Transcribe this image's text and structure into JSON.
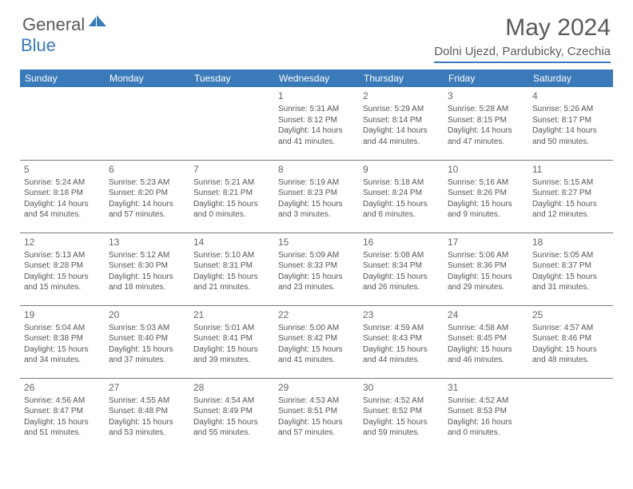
{
  "logo": {
    "text1": "General",
    "text2": "Blue"
  },
  "title": "May 2024",
  "location": "Dolni Ujezd, Pardubicky, Czechia",
  "colors": {
    "header_bar": "#3a7ab8",
    "text_gray": "#5a5a5a",
    "cell_text": "#555555",
    "border": "#7a7a7a",
    "bg": "#ffffff"
  },
  "days_of_week": [
    "Sunday",
    "Monday",
    "Tuesday",
    "Wednesday",
    "Thursday",
    "Friday",
    "Saturday"
  ],
  "weeks": [
    [
      {
        "n": "",
        "sr": "",
        "ss": "",
        "dl": ""
      },
      {
        "n": "",
        "sr": "",
        "ss": "",
        "dl": ""
      },
      {
        "n": "",
        "sr": "",
        "ss": "",
        "dl": ""
      },
      {
        "n": "1",
        "sr": "Sunrise: 5:31 AM",
        "ss": "Sunset: 8:12 PM",
        "dl": "Daylight: 14 hours and 41 minutes."
      },
      {
        "n": "2",
        "sr": "Sunrise: 5:29 AM",
        "ss": "Sunset: 8:14 PM",
        "dl": "Daylight: 14 hours and 44 minutes."
      },
      {
        "n": "3",
        "sr": "Sunrise: 5:28 AM",
        "ss": "Sunset: 8:15 PM",
        "dl": "Daylight: 14 hours and 47 minutes."
      },
      {
        "n": "4",
        "sr": "Sunrise: 5:26 AM",
        "ss": "Sunset: 8:17 PM",
        "dl": "Daylight: 14 hours and 50 minutes."
      }
    ],
    [
      {
        "n": "5",
        "sr": "Sunrise: 5:24 AM",
        "ss": "Sunset: 8:18 PM",
        "dl": "Daylight: 14 hours and 54 minutes."
      },
      {
        "n": "6",
        "sr": "Sunrise: 5:23 AM",
        "ss": "Sunset: 8:20 PM",
        "dl": "Daylight: 14 hours and 57 minutes."
      },
      {
        "n": "7",
        "sr": "Sunrise: 5:21 AM",
        "ss": "Sunset: 8:21 PM",
        "dl": "Daylight: 15 hours and 0 minutes."
      },
      {
        "n": "8",
        "sr": "Sunrise: 5:19 AM",
        "ss": "Sunset: 8:23 PM",
        "dl": "Daylight: 15 hours and 3 minutes."
      },
      {
        "n": "9",
        "sr": "Sunrise: 5:18 AM",
        "ss": "Sunset: 8:24 PM",
        "dl": "Daylight: 15 hours and 6 minutes."
      },
      {
        "n": "10",
        "sr": "Sunrise: 5:16 AM",
        "ss": "Sunset: 8:26 PM",
        "dl": "Daylight: 15 hours and 9 minutes."
      },
      {
        "n": "11",
        "sr": "Sunrise: 5:15 AM",
        "ss": "Sunset: 8:27 PM",
        "dl": "Daylight: 15 hours and 12 minutes."
      }
    ],
    [
      {
        "n": "12",
        "sr": "Sunrise: 5:13 AM",
        "ss": "Sunset: 8:28 PM",
        "dl": "Daylight: 15 hours and 15 minutes."
      },
      {
        "n": "13",
        "sr": "Sunrise: 5:12 AM",
        "ss": "Sunset: 8:30 PM",
        "dl": "Daylight: 15 hours and 18 minutes."
      },
      {
        "n": "14",
        "sr": "Sunrise: 5:10 AM",
        "ss": "Sunset: 8:31 PM",
        "dl": "Daylight: 15 hours and 21 minutes."
      },
      {
        "n": "15",
        "sr": "Sunrise: 5:09 AM",
        "ss": "Sunset: 8:33 PM",
        "dl": "Daylight: 15 hours and 23 minutes."
      },
      {
        "n": "16",
        "sr": "Sunrise: 5:08 AM",
        "ss": "Sunset: 8:34 PM",
        "dl": "Daylight: 15 hours and 26 minutes."
      },
      {
        "n": "17",
        "sr": "Sunrise: 5:06 AM",
        "ss": "Sunset: 8:36 PM",
        "dl": "Daylight: 15 hours and 29 minutes."
      },
      {
        "n": "18",
        "sr": "Sunrise: 5:05 AM",
        "ss": "Sunset: 8:37 PM",
        "dl": "Daylight: 15 hours and 31 minutes."
      }
    ],
    [
      {
        "n": "19",
        "sr": "Sunrise: 5:04 AM",
        "ss": "Sunset: 8:38 PM",
        "dl": "Daylight: 15 hours and 34 minutes."
      },
      {
        "n": "20",
        "sr": "Sunrise: 5:03 AM",
        "ss": "Sunset: 8:40 PM",
        "dl": "Daylight: 15 hours and 37 minutes."
      },
      {
        "n": "21",
        "sr": "Sunrise: 5:01 AM",
        "ss": "Sunset: 8:41 PM",
        "dl": "Daylight: 15 hours and 39 minutes."
      },
      {
        "n": "22",
        "sr": "Sunrise: 5:00 AM",
        "ss": "Sunset: 8:42 PM",
        "dl": "Daylight: 15 hours and 41 minutes."
      },
      {
        "n": "23",
        "sr": "Sunrise: 4:59 AM",
        "ss": "Sunset: 8:43 PM",
        "dl": "Daylight: 15 hours and 44 minutes."
      },
      {
        "n": "24",
        "sr": "Sunrise: 4:58 AM",
        "ss": "Sunset: 8:45 PM",
        "dl": "Daylight: 15 hours and 46 minutes."
      },
      {
        "n": "25",
        "sr": "Sunrise: 4:57 AM",
        "ss": "Sunset: 8:46 PM",
        "dl": "Daylight: 15 hours and 48 minutes."
      }
    ],
    [
      {
        "n": "26",
        "sr": "Sunrise: 4:56 AM",
        "ss": "Sunset: 8:47 PM",
        "dl": "Daylight: 15 hours and 51 minutes."
      },
      {
        "n": "27",
        "sr": "Sunrise: 4:55 AM",
        "ss": "Sunset: 8:48 PM",
        "dl": "Daylight: 15 hours and 53 minutes."
      },
      {
        "n": "28",
        "sr": "Sunrise: 4:54 AM",
        "ss": "Sunset: 8:49 PM",
        "dl": "Daylight: 15 hours and 55 minutes."
      },
      {
        "n": "29",
        "sr": "Sunrise: 4:53 AM",
        "ss": "Sunset: 8:51 PM",
        "dl": "Daylight: 15 hours and 57 minutes."
      },
      {
        "n": "30",
        "sr": "Sunrise: 4:52 AM",
        "ss": "Sunset: 8:52 PM",
        "dl": "Daylight: 15 hours and 59 minutes."
      },
      {
        "n": "31",
        "sr": "Sunrise: 4:52 AM",
        "ss": "Sunset: 8:53 PM",
        "dl": "Daylight: 16 hours and 0 minutes."
      },
      {
        "n": "",
        "sr": "",
        "ss": "",
        "dl": ""
      }
    ]
  ]
}
